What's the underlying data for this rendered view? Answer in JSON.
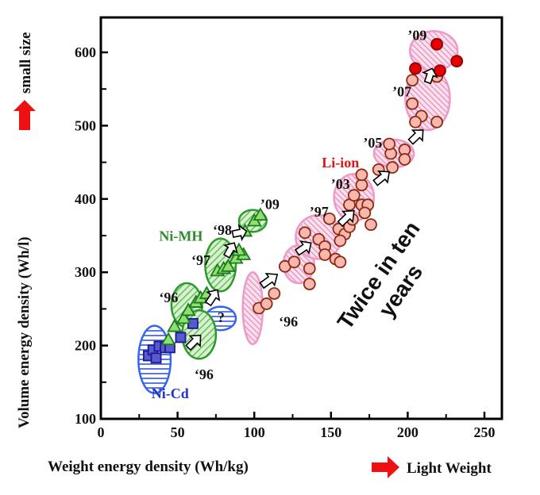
{
  "chart_data": {
    "type": "scatter",
    "xlabel": "Weight energy density (Wh/kg)",
    "ylabel": "Volume energy density (Wh/l)",
    "x_direction_note": "Light Weight",
    "y_direction_note": "small size",
    "xlim": [
      0,
      261
    ],
    "ylim": [
      100,
      648
    ],
    "xticks": [
      0,
      50,
      100,
      150,
      200,
      250
    ],
    "yticks": [
      100,
      200,
      300,
      400,
      500,
      600
    ],
    "grid": false,
    "colors": {
      "arrow_red": "#ee1111",
      "nicd": "#3355dd",
      "nimh": "#2e9a2e",
      "liion": "#ee2222",
      "liion_region": "#f0a0c8"
    },
    "series": [
      {
        "name": "Ni-Cd",
        "marker": "square",
        "fill": "#5a5ad0",
        "stroke": "#1a1a90",
        "points": [
          [
            31,
            186
          ],
          [
            34,
            194
          ],
          [
            38,
            199
          ],
          [
            42,
            197
          ],
          [
            45,
            197
          ],
          [
            36,
            183
          ],
          [
            52,
            211
          ],
          [
            60,
            230
          ]
        ]
      },
      {
        "name": "Ni-MH",
        "marker": "triangle",
        "fill": "#8fe070",
        "stroke": "#1e7a1e",
        "points": [
          [
            44,
            208
          ],
          [
            48,
            226
          ],
          [
            54,
            237
          ],
          [
            57,
            248
          ],
          [
            62,
            259
          ],
          [
            65,
            265
          ],
          [
            69,
            271
          ],
          [
            76,
            302
          ],
          [
            80,
            305
          ],
          [
            83,
            308
          ],
          [
            88,
            319
          ],
          [
            93,
            324
          ],
          [
            90,
            330
          ],
          [
            94,
            356
          ],
          [
            100,
            370
          ],
          [
            104,
            378
          ]
        ]
      },
      {
        "name": "Li-ion",
        "marker": "circle",
        "fill": "#f8b8b0",
        "stroke": "#8b2a10",
        "points": [
          [
            103,
            251
          ],
          [
            108,
            257
          ],
          [
            113,
            271
          ],
          [
            120,
            308
          ],
          [
            126,
            314
          ],
          [
            136,
            305
          ],
          [
            136,
            284
          ],
          [
            133,
            354
          ],
          [
            142,
            345
          ],
          [
            146,
            335
          ],
          [
            146,
            324
          ],
          [
            153,
            318
          ],
          [
            156,
            314
          ],
          [
            149,
            373
          ],
          [
            155,
            359
          ],
          [
            159,
            352
          ],
          [
            156,
            343
          ],
          [
            162,
            362
          ],
          [
            164,
            372
          ],
          [
            162,
            392
          ],
          [
            165,
            405
          ],
          [
            170,
            392
          ],
          [
            174,
            392
          ],
          [
            172,
            381
          ],
          [
            176,
            365
          ],
          [
            170,
            419
          ],
          [
            170,
            433
          ],
          [
            181,
            440
          ],
          [
            190,
            443
          ],
          [
            189,
            462
          ],
          [
            188,
            475
          ],
          [
            198,
            467
          ],
          [
            198,
            454
          ],
          [
            203,
            530
          ],
          [
            209,
            513
          ],
          [
            205,
            505
          ],
          [
            219,
            505
          ],
          [
            203,
            562
          ],
          [
            219,
            567
          ]
        ]
      },
      {
        "name": "Li-ion '09",
        "marker": "circle",
        "fill": "#e80000",
        "stroke": "#8a0000",
        "points": [
          [
            219,
            611
          ],
          [
            232,
            588
          ],
          [
            205,
            578
          ],
          [
            221,
            575
          ]
        ]
      }
    ],
    "regions": [
      {
        "group": "nicd",
        "center": [
          35,
          181
        ],
        "radii": [
          10.5,
          46
        ],
        "rotate": 0
      },
      {
        "group": "nicd",
        "center": [
          78,
          237
        ],
        "radii": [
          10,
          16
        ],
        "rotate": 0,
        "label": "?"
      },
      {
        "group": "nimh",
        "center": [
          56,
          255
        ],
        "radii": [
          10,
          30
        ],
        "rotate": 0
      },
      {
        "group": "nimh",
        "center": [
          64,
          215
        ],
        "radii": [
          11,
          33
        ],
        "rotate": 0
      },
      {
        "group": "nimh",
        "center": [
          78,
          310
        ],
        "radii": [
          10,
          36
        ],
        "rotate": 0
      },
      {
        "group": "nimh",
        "center": [
          99,
          370
        ],
        "radii": [
          9,
          15
        ],
        "rotate": 0
      },
      {
        "group": "liion",
        "center": [
          99,
          251
        ],
        "radii": [
          6.5,
          49
        ],
        "rotate": 0
      },
      {
        "group": "liion",
        "center": [
          129,
          311
        ],
        "radii": [
          10,
          26
        ],
        "rotate": 0
      },
      {
        "group": "liion",
        "center": [
          142,
          348
        ],
        "radii": [
          15,
          30
        ],
        "rotate": 0
      },
      {
        "group": "liion",
        "center": [
          165,
          402
        ],
        "radii": [
          13,
          32
        ],
        "rotate": 0
      },
      {
        "group": "liion",
        "center": [
          191,
          462
        ],
        "radii": [
          13,
          19
        ],
        "rotate": 0
      },
      {
        "group": "liion",
        "center": [
          213,
          537
        ],
        "radii": [
          14.5,
          43
        ],
        "rotate": 0
      },
      {
        "group": "liion",
        "center": [
          217,
          602
        ],
        "radii": [
          15.5,
          27
        ],
        "rotate": 0
      }
    ],
    "trend_arrows": [
      [
        [
          57,
          197
        ],
        [
          65,
          214
        ]
      ],
      [
        [
          70,
          257
        ],
        [
          76,
          276
        ]
      ],
      [
        [
          82,
          322
        ],
        [
          87,
          340
        ]
      ],
      [
        [
          86,
          352
        ],
        [
          95,
          356
        ]
      ],
      [
        [
          105,
          282
        ],
        [
          115,
          297
        ]
      ],
      [
        [
          128,
          327
        ],
        [
          137,
          340
        ]
      ],
      [
        [
          156,
          366
        ],
        [
          165,
          384
        ]
      ],
      [
        [
          179,
          422
        ],
        [
          188,
          437
        ]
      ],
      [
        [
          202,
          478
        ],
        [
          210,
          494
        ]
      ],
      [
        [
          213,
          559
        ],
        [
          216,
          578
        ]
      ]
    ],
    "annotations": [
      {
        "text": "Ni-Cd",
        "at": [
          33,
          128
        ],
        "color": "#2233cc"
      },
      {
        "text": "Ni-MH",
        "at": [
          38,
          343
        ],
        "color": "#2e8a2e"
      },
      {
        "text": "Li-ion",
        "at": [
          144,
          443
        ],
        "color": "#e01515"
      },
      {
        "text": "‘96",
        "at": [
          61,
          154
        ],
        "color": "#111111"
      },
      {
        "text": "‘96",
        "at": [
          38,
          259
        ],
        "color": "#111111"
      },
      {
        "text": "‘97",
        "at": [
          59,
          310
        ],
        "color": "#111111"
      },
      {
        "text": "‘98",
        "at": [
          73,
          351
        ],
        "color": "#111111"
      },
      {
        "text": "’09",
        "at": [
          104,
          386
        ],
        "color": "#111111"
      },
      {
        "text": "?",
        "at": [
          76,
          232
        ],
        "color": "#111111"
      },
      {
        "text": "‘96",
        "at": [
          116,
          226
        ],
        "color": "#111111"
      },
      {
        "text": "’97",
        "at": [
          136,
          376
        ],
        "color": "#111111"
      },
      {
        "text": "’03",
        "at": [
          150,
          414
        ],
        "color": "#111111"
      },
      {
        "text": "’05",
        "at": [
          171,
          470
        ],
        "color": "#111111"
      },
      {
        "text": "’07",
        "at": [
          190,
          540
        ],
        "color": "#111111"
      },
      {
        "text": "’09",
        "at": [
          200,
          617
        ],
        "color": "#111111"
      }
    ],
    "callout": {
      "line1": "Twice in ten",
      "line2": "years",
      "at": [
        185,
        290
      ]
    }
  }
}
